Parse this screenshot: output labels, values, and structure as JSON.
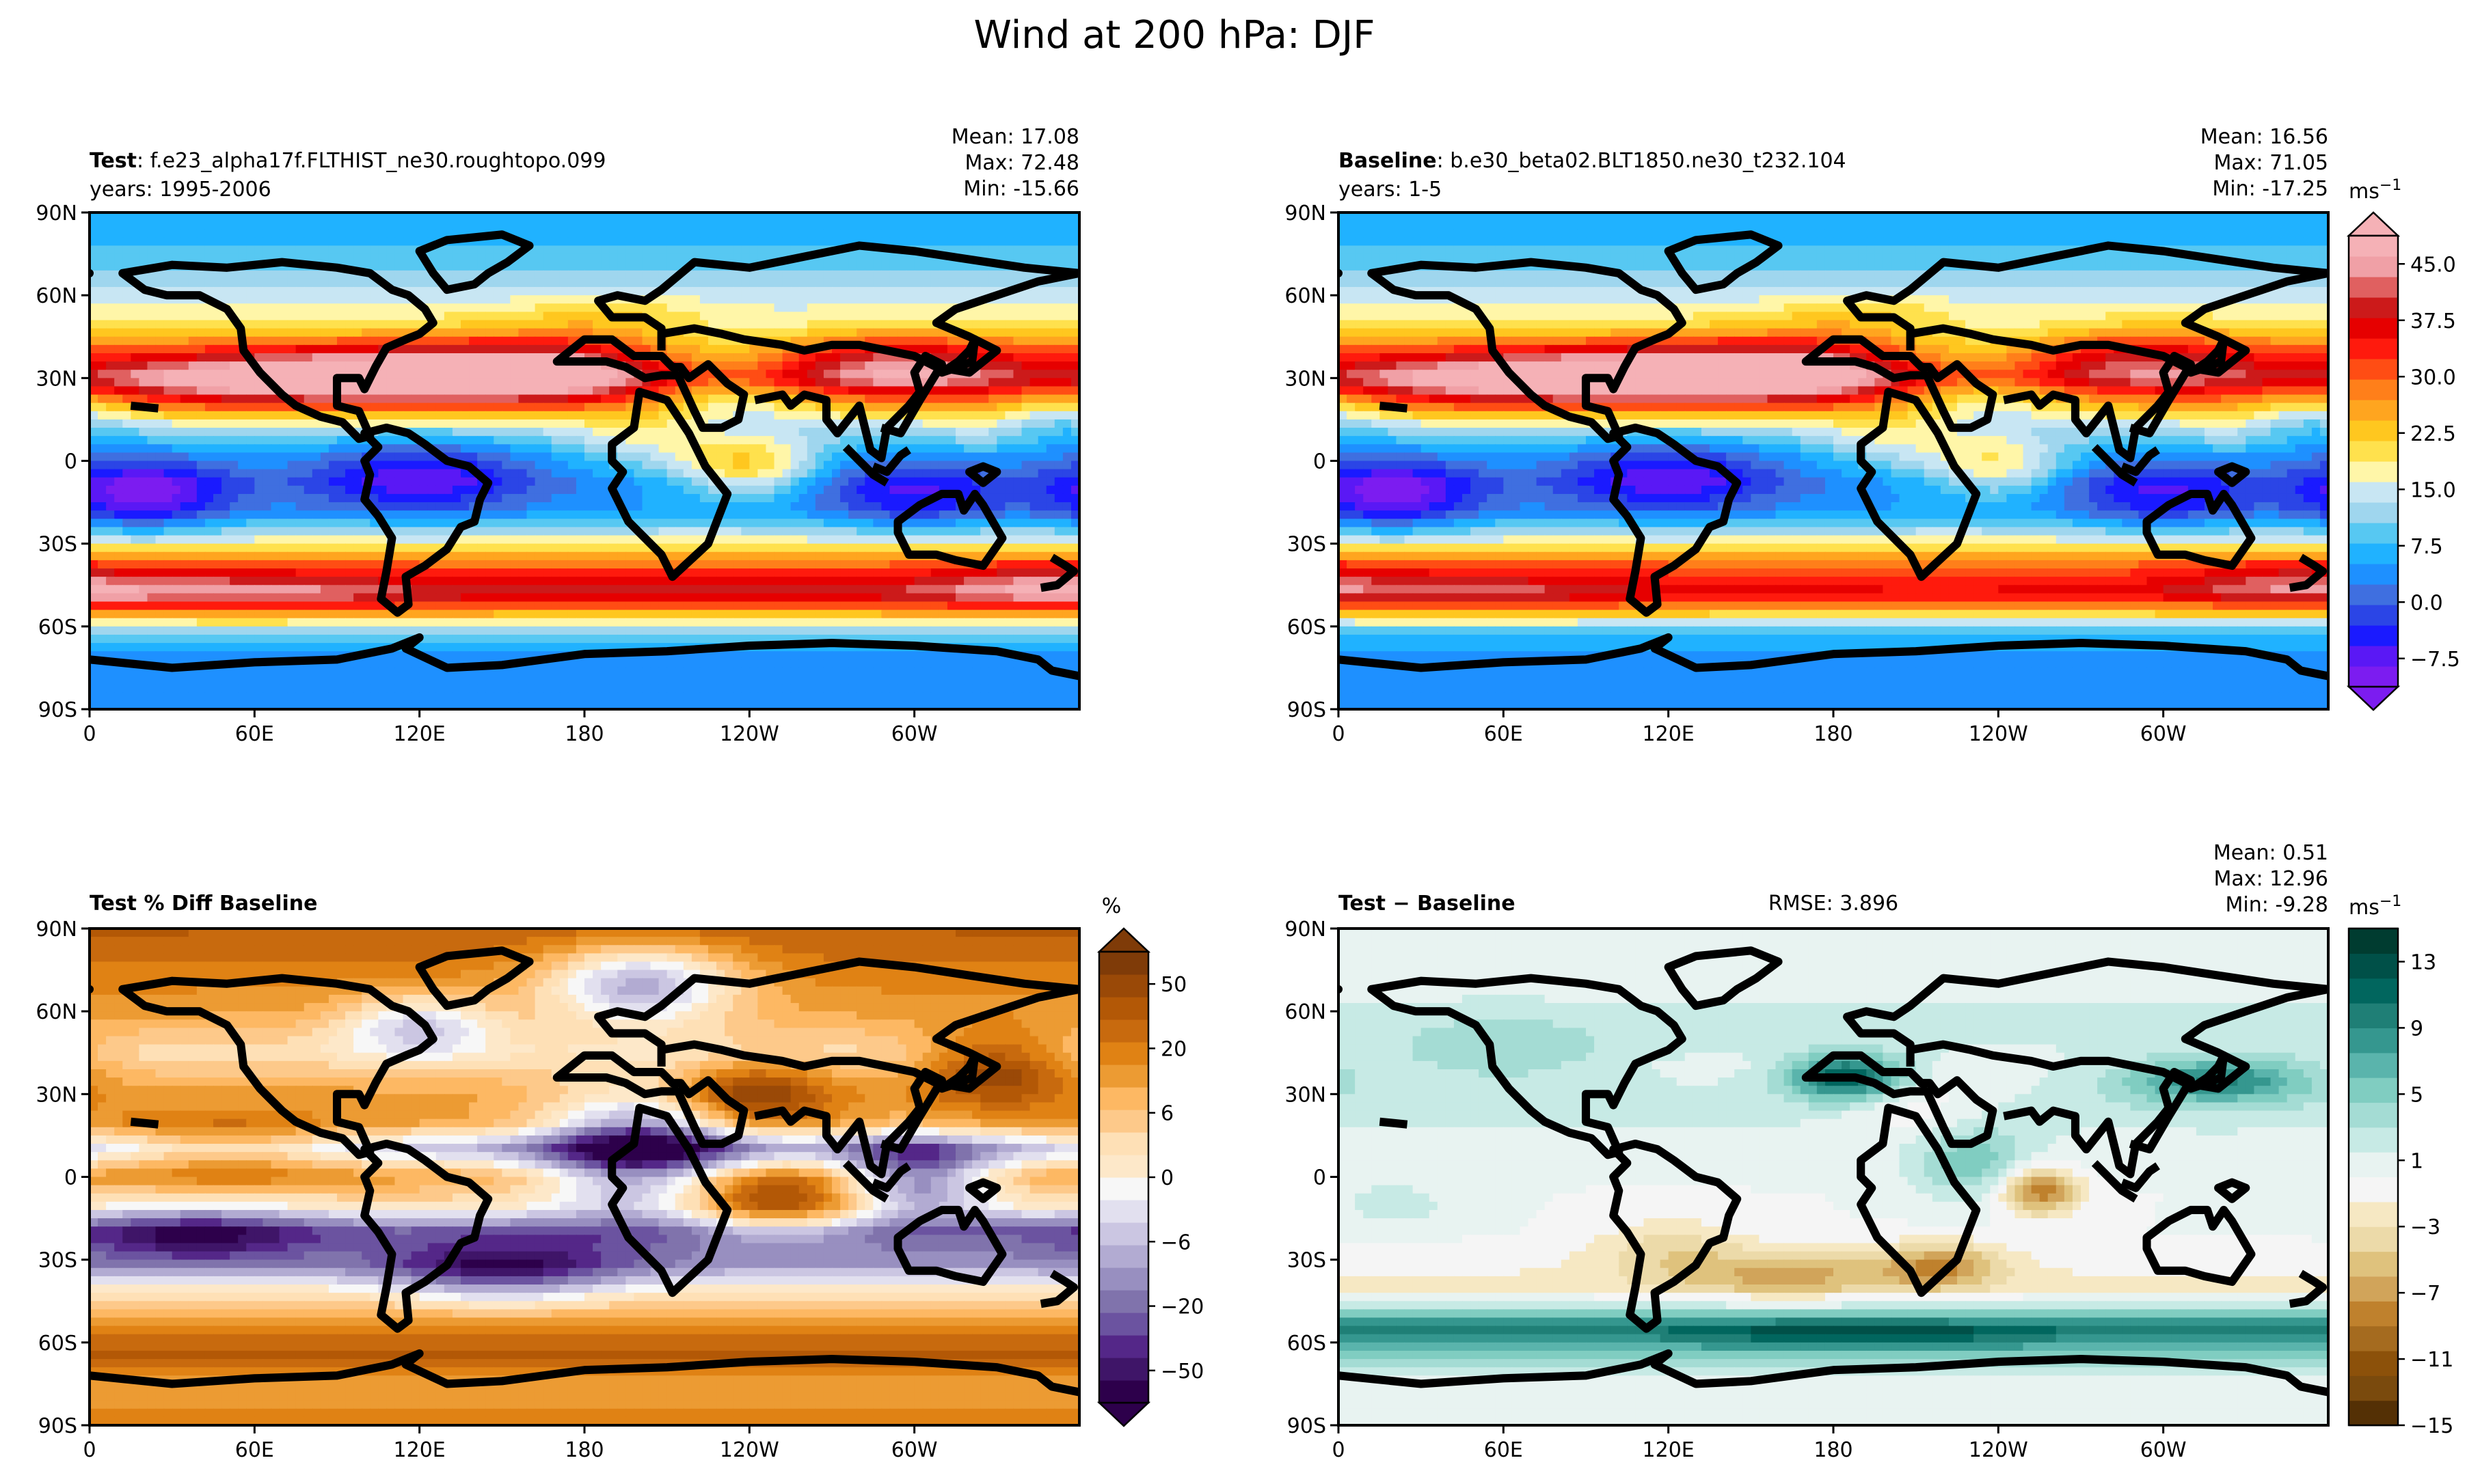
{
  "figure": {
    "suptitle": "Wind at 200 hPa: DJF"
  },
  "chart_data": [
    {
      "type": "heatmap",
      "panel": "test",
      "title_bold": "Test",
      "title_rest": ": f.e23_alpha17f.FLTHIST_ne30.roughtopo.099",
      "subtitle": "years: 1995-2006",
      "stats": [
        "Mean: 17.08",
        "Max: 72.48",
        "Min: -15.66"
      ],
      "xticks": [
        "0",
        "60E",
        "120E",
        "180",
        "120W",
        "60W"
      ],
      "yticks": [
        "90N",
        "60N",
        "30N",
        "0",
        "30S",
        "60S",
        "90S"
      ],
      "colormap": "wind",
      "field": {
        "zonal": [
          [
            -90,
            5
          ],
          [
            -72,
            4
          ],
          [
            -62,
            10
          ],
          [
            -48,
            40
          ],
          [
            -38,
            30
          ],
          [
            -28,
            16
          ],
          [
            -18,
            5
          ],
          [
            -8,
            3
          ],
          [
            2,
            7
          ],
          [
            12,
            14
          ],
          [
            22,
            28
          ],
          [
            30,
            40
          ],
          [
            38,
            32
          ],
          [
            48,
            20
          ],
          [
            60,
            14
          ],
          [
            72,
            9
          ],
          [
            90,
            6
          ]
        ],
        "anomalies": [
          {
            "lon": 150,
            "lat": 31,
            "amp": 22,
            "slon": 55,
            "slat": 8
          },
          {
            "lon": 60,
            "lat": 28,
            "amp": 10,
            "slon": 40,
            "slat": 7
          },
          {
            "lon": 290,
            "lat": 35,
            "amp": 10,
            "slon": 30,
            "slat": 8
          },
          {
            "lon": 225,
            "lat": 30,
            "amp": -18,
            "slon": 30,
            "slat": 12
          },
          {
            "lon": 345,
            "lat": 18,
            "amp": -9,
            "slon": 20,
            "slat": 10
          },
          {
            "lon": 20,
            "lat": -12,
            "amp": -14,
            "slon": 22,
            "slat": 10
          },
          {
            "lon": 120,
            "lat": -5,
            "amp": -12,
            "slon": 28,
            "slat": 10
          },
          {
            "lon": 300,
            "lat": -12,
            "amp": -10,
            "slon": 25,
            "slat": 10
          },
          {
            "lon": 240,
            "lat": -2,
            "amp": 16,
            "slon": 18,
            "slat": 8
          },
          {
            "lon": 205,
            "lat": 10,
            "amp": 8,
            "slon": 20,
            "slat": 10
          },
          {
            "lon": 330,
            "lat": 15,
            "amp": 6,
            "slon": 15,
            "slat": 10
          },
          {
            "lon": 195,
            "lat": 50,
            "amp": 6,
            "slon": 30,
            "slat": 8
          },
          {
            "lon": 60,
            "lat": -48,
            "amp": 6,
            "slon": 40,
            "slat": 6
          },
          {
            "lon": 345,
            "lat": -45,
            "amp": 8,
            "slon": 30,
            "slat": 6
          }
        ]
      }
    },
    {
      "type": "heatmap",
      "panel": "baseline",
      "title_bold": "Baseline",
      "title_rest": ": b.e30_beta02.BLT1850.ne30_t232.104",
      "subtitle": "years: 1-5",
      "stats": [
        "Mean: 16.56",
        "Max: 71.05",
        "Min: -17.25"
      ],
      "xticks": [
        "0",
        "60E",
        "120E",
        "180",
        "120W",
        "60W"
      ],
      "yticks": [
        "90N",
        "60N",
        "30N",
        "0",
        "30S",
        "60S",
        "90S"
      ],
      "colormap": "wind",
      "colorbar": {
        "units_base": "ms",
        "units_exp": "−1",
        "ticks": [
          "45.0",
          "37.5",
          "30.0",
          "22.5",
          "15.0",
          "7.5",
          "0.0",
          "−7.5"
        ],
        "tick_values": [
          45,
          37.5,
          30,
          22.5,
          15,
          7.5,
          0,
          -7.5
        ],
        "range": [
          -11.25,
          48.75
        ]
      },
      "field": {
        "zonal": [
          [
            -90,
            5
          ],
          [
            -72,
            4
          ],
          [
            -62,
            8
          ],
          [
            -48,
            36
          ],
          [
            -38,
            30
          ],
          [
            -28,
            16
          ],
          [
            -18,
            5
          ],
          [
            -8,
            3
          ],
          [
            2,
            7
          ],
          [
            12,
            14
          ],
          [
            22,
            28
          ],
          [
            30,
            40
          ],
          [
            38,
            32
          ],
          [
            48,
            20
          ],
          [
            60,
            14
          ],
          [
            72,
            9
          ],
          [
            90,
            6
          ]
        ],
        "anomalies": [
          {
            "lon": 150,
            "lat": 31,
            "amp": 22,
            "slon": 55,
            "slat": 8
          },
          {
            "lon": 60,
            "lat": 28,
            "amp": 10,
            "slon": 40,
            "slat": 7
          },
          {
            "lon": 290,
            "lat": 38,
            "amp": 8,
            "slon": 30,
            "slat": 8
          },
          {
            "lon": 225,
            "lat": 30,
            "amp": -18,
            "slon": 30,
            "slat": 12
          },
          {
            "lon": 345,
            "lat": 18,
            "amp": -9,
            "slon": 20,
            "slat": 10
          },
          {
            "lon": 20,
            "lat": -12,
            "amp": -14,
            "slon": 22,
            "slat": 10
          },
          {
            "lon": 120,
            "lat": -5,
            "amp": -12,
            "slon": 28,
            "slat": 10
          },
          {
            "lon": 300,
            "lat": -12,
            "amp": -10,
            "slon": 25,
            "slat": 10
          },
          {
            "lon": 240,
            "lat": -2,
            "amp": 13,
            "slon": 18,
            "slat": 8
          },
          {
            "lon": 205,
            "lat": 10,
            "amp": 8,
            "slon": 20,
            "slat": 10
          },
          {
            "lon": 330,
            "lat": 15,
            "amp": 6,
            "slon": 15,
            "slat": 10
          },
          {
            "lon": 195,
            "lat": 50,
            "amp": 6,
            "slon": 30,
            "slat": 8
          },
          {
            "lon": 60,
            "lat": -48,
            "amp": 6,
            "slon": 40,
            "slat": 6
          },
          {
            "lon": 345,
            "lat": -45,
            "amp": 8,
            "slon": 30,
            "slat": 6
          }
        ]
      }
    },
    {
      "type": "heatmap",
      "panel": "pct_diff",
      "title_bold": "Test % Diff Baseline",
      "xticks": [
        "0",
        "60E",
        "120E",
        "180",
        "120W",
        "60W"
      ],
      "yticks": [
        "90N",
        "60N",
        "30N",
        "0",
        "30S",
        "60S",
        "90S"
      ],
      "colormap": "puor",
      "colorbar": {
        "units_base": "%",
        "ticks": [
          "50",
          "20",
          "6",
          "0",
          "−6",
          "−20",
          "−50"
        ],
        "tick_levels": [
          6,
          4,
          2,
          0,
          -2,
          -4,
          -6
        ],
        "range": [
          -7,
          7
        ]
      },
      "field": {
        "zonal": [
          [
            -90,
            4
          ],
          [
            -75,
            3
          ],
          [
            -65,
            5
          ],
          [
            -55,
            4
          ],
          [
            -42,
            1
          ],
          [
            -32,
            -3
          ],
          [
            -20,
            -4
          ],
          [
            -10,
            1
          ],
          [
            0,
            3
          ],
          [
            10,
            -2
          ],
          [
            20,
            3
          ],
          [
            30,
            3
          ],
          [
            45,
            1
          ],
          [
            60,
            3
          ],
          [
            75,
            4
          ],
          [
            90,
            5
          ]
        ],
        "anomalies": [
          {
            "lon": 200,
            "lat": 10,
            "amp": -7,
            "slon": 25,
            "slat": 15
          },
          {
            "lon": 300,
            "lat": 0,
            "amp": -6,
            "slon": 20,
            "slat": 10
          },
          {
            "lon": 250,
            "lat": -10,
            "amp": 5,
            "slon": 25,
            "slat": 8
          },
          {
            "lon": 40,
            "lat": -20,
            "amp": -3,
            "slon": 30,
            "slat": 8
          },
          {
            "lon": 330,
            "lat": 40,
            "amp": 4,
            "slon": 20,
            "slat": 10
          },
          {
            "lon": 120,
            "lat": 55,
            "amp": -4,
            "slon": 20,
            "slat": 8
          },
          {
            "lon": 200,
            "lat": 70,
            "amp": -6,
            "slon": 25,
            "slat": 10
          },
          {
            "lon": 50,
            "lat": 10,
            "amp": 3,
            "slon": 30,
            "slat": 8
          },
          {
            "lon": 240,
            "lat": 30,
            "amp": 4,
            "slon": 20,
            "slat": 8
          },
          {
            "lon": 150,
            "lat": -35,
            "amp": -4,
            "slon": 30,
            "slat": 8
          }
        ]
      }
    },
    {
      "type": "heatmap",
      "panel": "difference",
      "title_bold": "Test − Baseline",
      "rmse": "RMSE: 3.896",
      "stats": [
        "Mean:  0.51",
        "Max: 12.96",
        "Min: -9.28"
      ],
      "xticks": [
        "0",
        "60E",
        "120E",
        "180",
        "120W",
        "60W"
      ],
      "yticks": [
        "90N",
        "60N",
        "30N",
        "0",
        "30S",
        "60S",
        "90S"
      ],
      "colormap": "brbg",
      "colorbar": {
        "units_base": "ms",
        "units_exp": "−1",
        "ticks": [
          "13",
          "9",
          "5",
          "1",
          "−3",
          "−7",
          "−11",
          "−15"
        ],
        "tick_values": [
          13,
          9,
          5,
          1,
          -3,
          -7,
          -11,
          -15
        ],
        "range": [
          -15,
          15
        ]
      },
      "field": {
        "zonal": [
          [
            -90,
            0
          ],
          [
            -75,
            0.5
          ],
          [
            -65,
            5
          ],
          [
            -55,
            10
          ],
          [
            -48,
            3
          ],
          [
            -40,
            -2
          ],
          [
            -30,
            -1
          ],
          [
            -20,
            0
          ],
          [
            -5,
            0
          ],
          [
            10,
            1
          ],
          [
            25,
            2
          ],
          [
            40,
            1
          ],
          [
            55,
            2
          ],
          [
            70,
            1
          ],
          [
            90,
            0
          ]
        ],
        "anomalies": [
          {
            "lon": 185,
            "lat": 36,
            "amp": 11,
            "slon": 15,
            "slat": 6
          },
          {
            "lon": 320,
            "lat": 35,
            "amp": 8,
            "slon": 25,
            "slat": 6
          },
          {
            "lon": 255,
            "lat": -5,
            "amp": -9,
            "slon": 10,
            "slat": 6
          },
          {
            "lon": 230,
            "lat": 5,
            "amp": 5,
            "slon": 15,
            "slat": 10
          },
          {
            "lon": 165,
            "lat": -35,
            "amp": -5,
            "slon": 30,
            "slat": 6
          },
          {
            "lon": 220,
            "lat": -32,
            "amp": -6,
            "slon": 15,
            "slat": 6
          },
          {
            "lon": 120,
            "lat": -25,
            "amp": -3,
            "slon": 20,
            "slat": 8
          },
          {
            "lon": 60,
            "lat": 45,
            "amp": 3,
            "slon": 30,
            "slat": 8
          },
          {
            "lon": 210,
            "lat": 25,
            "amp": -3,
            "slon": 20,
            "slat": 8
          },
          {
            "lon": 20,
            "lat": -10,
            "amp": 2,
            "slon": 20,
            "slat": 8
          },
          {
            "lon": 190,
            "lat": -57,
            "amp": 4,
            "slon": 40,
            "slat": 4
          }
        ]
      }
    }
  ]
}
